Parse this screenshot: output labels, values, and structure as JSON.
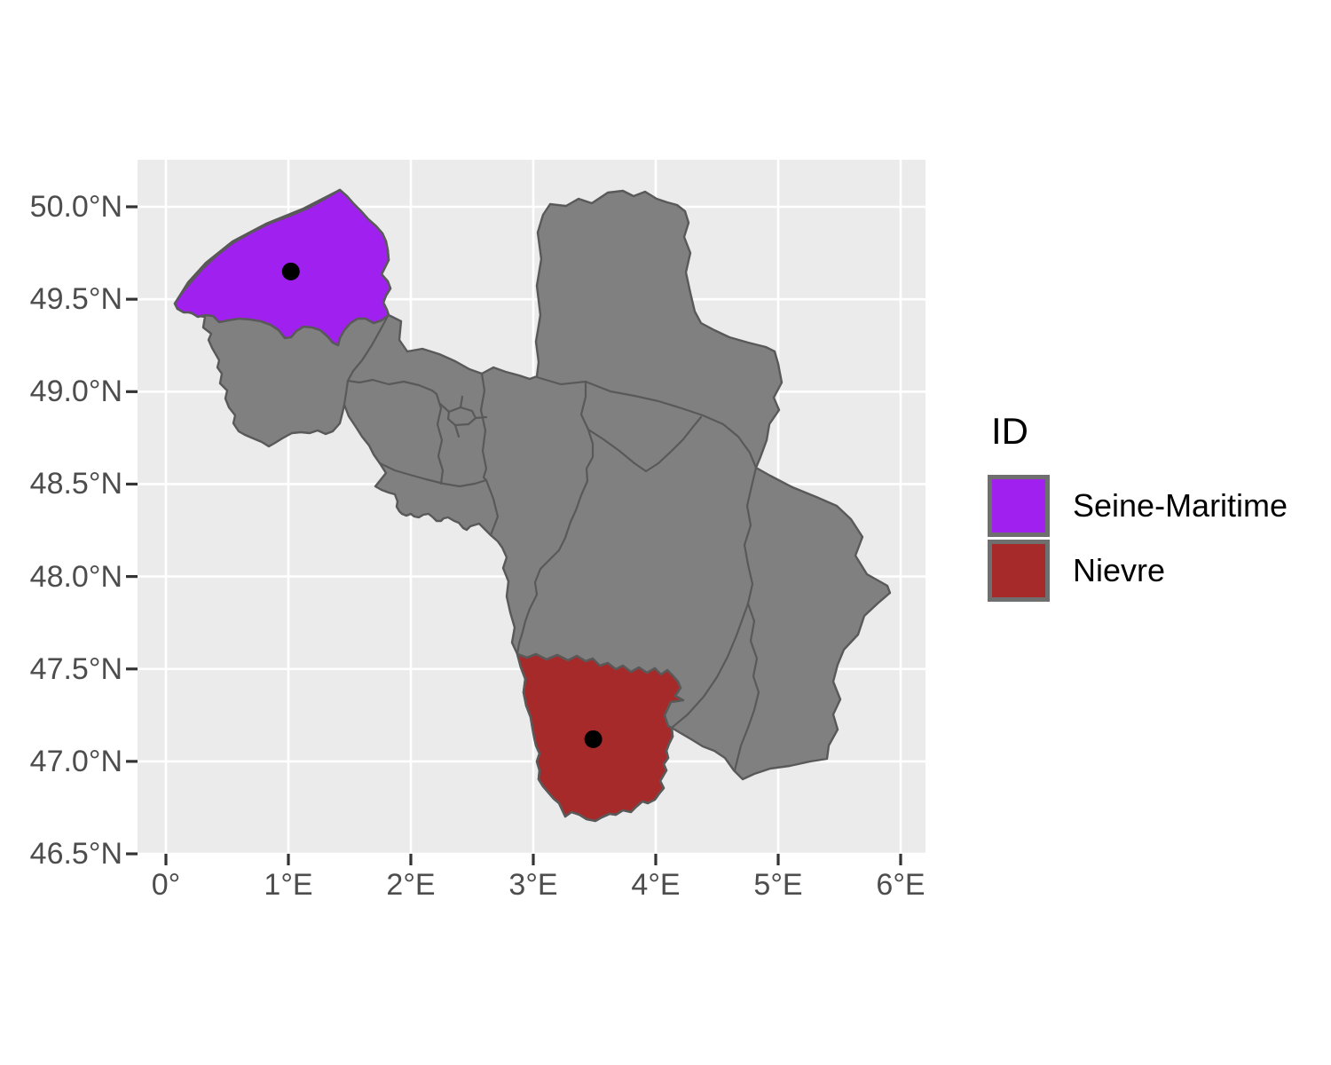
{
  "axes": {
    "x": {
      "ticks": [
        {
          "label": "0°",
          "value": 0
        },
        {
          "label": "1°E",
          "value": 1
        },
        {
          "label": "2°E",
          "value": 2
        },
        {
          "label": "3°E",
          "value": 3
        },
        {
          "label": "4°E",
          "value": 4
        },
        {
          "label": "5°E",
          "value": 5
        },
        {
          "label": "6°E",
          "value": 6
        }
      ]
    },
    "y": {
      "ticks": [
        {
          "label": "50.0°N",
          "value": 50.0
        },
        {
          "label": "49.5°N",
          "value": 49.5
        },
        {
          "label": "49.0°N",
          "value": 49.0
        },
        {
          "label": "48.5°N",
          "value": 48.5
        },
        {
          "label": "48.0°N",
          "value": 48.0
        },
        {
          "label": "47.5°N",
          "value": 47.5
        },
        {
          "label": "47.0°N",
          "value": 47.0
        },
        {
          "label": "46.5°N",
          "value": 46.5
        }
      ]
    }
  },
  "legend": {
    "title": "ID",
    "items": [
      {
        "label": "Seine-Maritime",
        "color": "#A020F0"
      },
      {
        "label": "Nievre",
        "color": "#A72A2A"
      }
    ]
  },
  "map": {
    "regions": [
      {
        "id": "Seine-Maritime",
        "fill": "#A020F0",
        "centroid": {
          "lon": 1.02,
          "lat": 49.65
        }
      },
      {
        "id": "Nievre",
        "fill": "#A72A2A",
        "centroid": {
          "lon": 3.49,
          "lat": 47.12
        }
      }
    ],
    "other_fill": "#808080",
    "border": "#595959",
    "panel_bg": "#EBEBEB",
    "grid": "#FFFFFF",
    "point_color": "#000000"
  }
}
